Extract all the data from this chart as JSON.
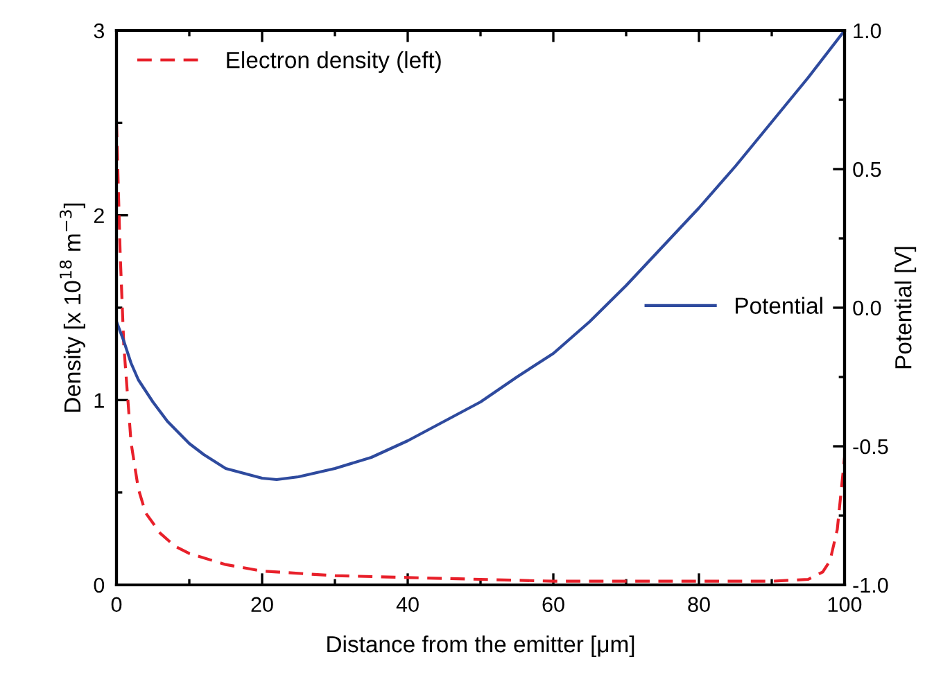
{
  "chart_data": {
    "type": "line",
    "xlabel": "Distance from the emitter [μm]",
    "ylabel": "Density [x 10$^{18}$ m$^{−3}$]",
    "y2label": "Potential [V]",
    "xlim": [
      0,
      100
    ],
    "xticks": [
      0,
      20,
      40,
      60,
      80,
      100
    ],
    "ylim": [
      0,
      3
    ],
    "yticks": [
      0,
      1,
      2,
      3
    ],
    "y2lim": [
      -1.0,
      1.0
    ],
    "y2ticks": [
      {
        "value": -1.0,
        "label": "-1.0"
      },
      {
        "value": -0.5,
        "label": "-0.5"
      },
      {
        "value": 0.0,
        "label": "0.0"
      },
      {
        "value": 0.5,
        "label": "0.5"
      },
      {
        "value": 1.0,
        "label": "1.0"
      }
    ],
    "grid": false,
    "legend": [
      "top left",
      "center right"
    ],
    "series": [
      {
        "name": "Electron density (left)",
        "color": "#e8202a",
        "line_style": "dashed",
        "x": [
          0,
          0.5,
          1,
          2,
          3,
          4,
          6,
          8,
          10,
          15,
          20,
          30,
          40,
          50,
          60,
          70,
          80,
          90,
          95,
          97,
          98,
          99,
          100
        ],
        "values": [
          2.5,
          1.8,
          1.3,
          0.77,
          0.52,
          0.39,
          0.28,
          0.21,
          0.17,
          0.11,
          0.075,
          0.05,
          0.04,
          0.03,
          0.02,
          0.02,
          0.02,
          0.02,
          0.03,
          0.07,
          0.13,
          0.3,
          0.69
        ]
      },
      {
        "name": "Potential",
        "color": "#2e4a9e",
        "line_style": "solid",
        "axis": "y2",
        "x": [
          0,
          1,
          2,
          3,
          5,
          7,
          10,
          12,
          15,
          20,
          22,
          25,
          30,
          35,
          40,
          45,
          50,
          55,
          60,
          65,
          70,
          75,
          80,
          85,
          90,
          95,
          100
        ],
        "values": [
          -0.05,
          -0.12,
          -0.2,
          -0.26,
          -0.34,
          -0.41,
          -0.49,
          -0.53,
          -0.58,
          -0.615,
          -0.62,
          -0.61,
          -0.58,
          -0.54,
          -0.48,
          -0.41,
          -0.34,
          -0.25,
          -0.165,
          -0.05,
          0.08,
          0.22,
          0.36,
          0.51,
          0.67,
          0.83,
          1.0
        ]
      }
    ]
  }
}
